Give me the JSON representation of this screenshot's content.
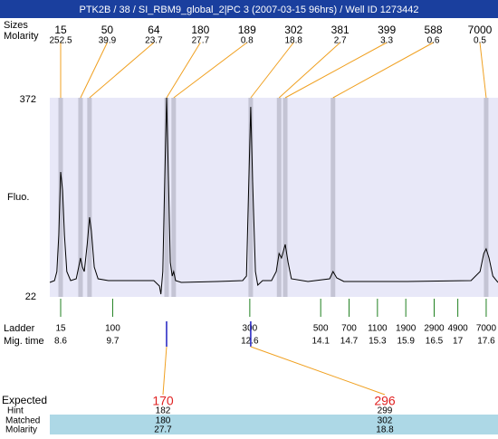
{
  "chart_data": {
    "type": "electropherogram",
    "title": "PTK2B / 38 / SI_RBM9_global_2|PC 3 (2007-03-15 96hrs) / Well ID 1273442",
    "size_label": "Sizes",
    "molarity_label": "Molarity",
    "y_label": "Fluo.",
    "ylim": [
      22,
      372
    ],
    "yticks": [
      22,
      372
    ],
    "xlim": [
      8.37,
      17.85
    ],
    "peaks": {
      "sizes": [
        15,
        50,
        64,
        180,
        189,
        302,
        381,
        399,
        588,
        7000
      ],
      "molarity": [
        252.5,
        39.9,
        23.7,
        27.7,
        0.8,
        18.8,
        2.7,
        3.3,
        0.6,
        0.5
      ],
      "x": [
        8.6,
        9.02,
        9.21,
        10.84,
        10.99,
        12.62,
        13.22,
        13.35,
        14.36,
        17.6
      ]
    },
    "trace": {
      "x": [
        8.37,
        8.47,
        8.52,
        8.56,
        8.6,
        8.64,
        8.68,
        8.73,
        8.81,
        8.93,
        8.98,
        9.02,
        9.06,
        9.1,
        9.16,
        9.21,
        9.25,
        9.31,
        9.39,
        9.61,
        10.19,
        10.57,
        10.69,
        10.72,
        10.76,
        10.8,
        10.84,
        10.88,
        10.92,
        10.96,
        10.99,
        11.03,
        11.15,
        11.91,
        12.45,
        12.53,
        12.58,
        12.62,
        12.66,
        12.72,
        12.77,
        12.87,
        13.06,
        13.16,
        13.22,
        13.27,
        13.35,
        13.41,
        13.48,
        13.83,
        14.29,
        14.36,
        14.44,
        14.59,
        15.93,
        17.28,
        17.47,
        17.55,
        17.6,
        17.66,
        17.74,
        17.85
      ],
      "values": [
        47.5,
        50.6,
        66.5,
        130.2,
        241.6,
        209.7,
        130.2,
        66.5,
        50.6,
        53.8,
        74.5,
        90.4,
        74.5,
        66.5,
        114.3,
        162,
        138.1,
        74.5,
        53.8,
        50.6,
        50.6,
        50.6,
        41.1,
        26.8,
        66.5,
        225.6,
        372,
        225.6,
        82.5,
        58.6,
        66.5,
        50.6,
        47.5,
        49,
        50.6,
        58.6,
        225.6,
        356,
        225.6,
        66.5,
        42.7,
        50.6,
        50.6,
        66.5,
        98.4,
        90.4,
        114.3,
        82.5,
        53.8,
        49,
        53.8,
        66.5,
        55.4,
        49,
        49,
        50.6,
        66.5,
        98.4,
        106.4,
        90.4,
        58.6,
        47.5
      ]
    },
    "ladder": {
      "label": "Ladder",
      "time_label": "Mig. time",
      "sizes": [
        15,
        100,
        300,
        500,
        700,
        1100,
        1900,
        2900,
        4900,
        7000
      ],
      "x": [
        8.6,
        9.7,
        12.6,
        14.1,
        14.7,
        15.3,
        15.9,
        16.5,
        17,
        17.6
      ]
    },
    "expected": {
      "expected_label": "Expected",
      "hint_label": "Hint",
      "matched_label": "Matched",
      "molarity_label": "Molarity",
      "expected": [
        170,
        296
      ],
      "hint": [
        182,
        299
      ],
      "matched": [
        180,
        302
      ],
      "molarity": [
        27.7,
        18.8
      ]
    }
  }
}
